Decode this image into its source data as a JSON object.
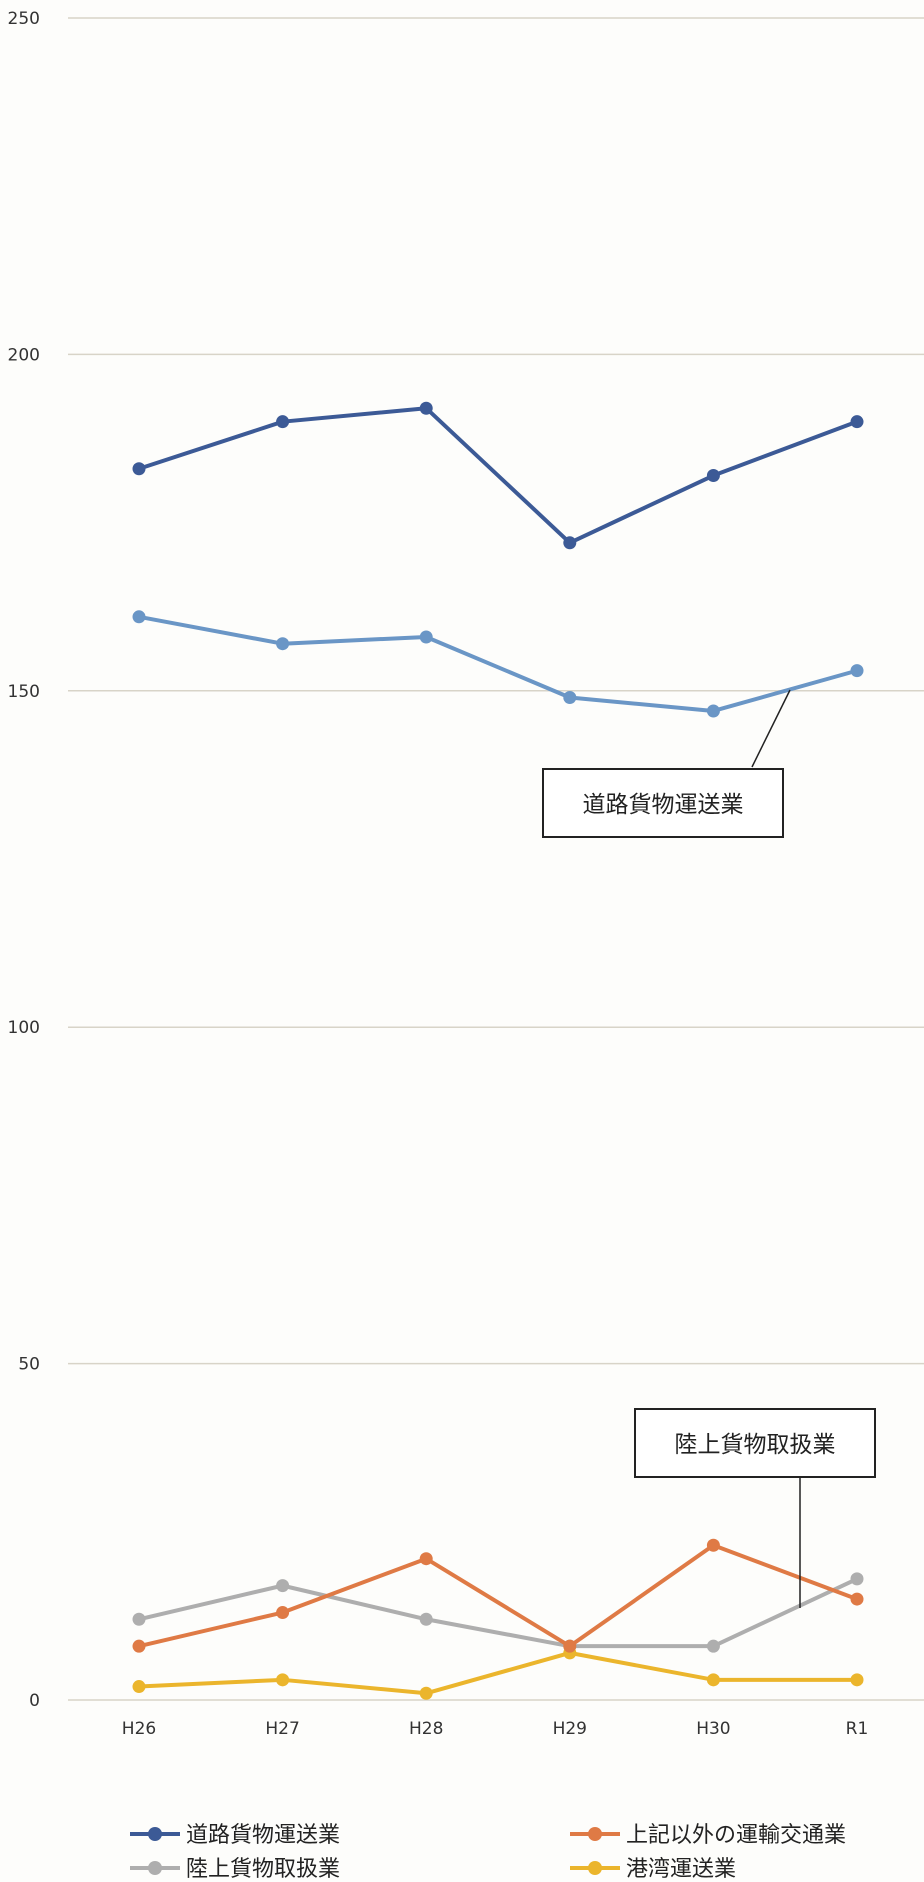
{
  "chart_data": {
    "type": "line",
    "categories": [
      "H26",
      "H27",
      "H28",
      "H29",
      "H30",
      "R1"
    ],
    "ylim": [
      0,
      250
    ],
    "yticks": [
      "0",
      "50",
      "100",
      "150",
      "200",
      "250"
    ],
    "grid": true,
    "legend_position": "bottom",
    "series": [
      {
        "name": "道路貨物運送業",
        "color": "#3c5a96",
        "values": [
          183,
          190,
          192,
          172,
          182,
          190
        ]
      },
      {
        "name": "",
        "color": "#6a96c6",
        "values": [
          161,
          157,
          158,
          149,
          147,
          153
        ]
      },
      {
        "name": "上記以外の運輸交通業",
        "color": "#df7a45",
        "values": [
          8,
          13,
          21,
          8,
          23,
          15
        ]
      },
      {
        "name": "陸上貨物取扱業",
        "color": "#aeaeae",
        "values": [
          12,
          17,
          12,
          8,
          8,
          18
        ]
      },
      {
        "name": "港湾運送業",
        "color": "#ebb52c",
        "values": [
          2,
          3,
          1,
          7,
          3,
          3
        ]
      }
    ],
    "annotations": [
      "道路貨物運送業",
      "陸上貨物取扱業"
    ],
    "legend": [
      {
        "label": "道路貨物運送業",
        "color": "#3c5a96"
      },
      {
        "label": "上記以外の運輸交通業",
        "color": "#df7a45"
      },
      {
        "label": "陸上貨物取扱業",
        "color": "#aeaeae"
      },
      {
        "label": "港湾運送業",
        "color": "#ebb52c"
      }
    ]
  }
}
